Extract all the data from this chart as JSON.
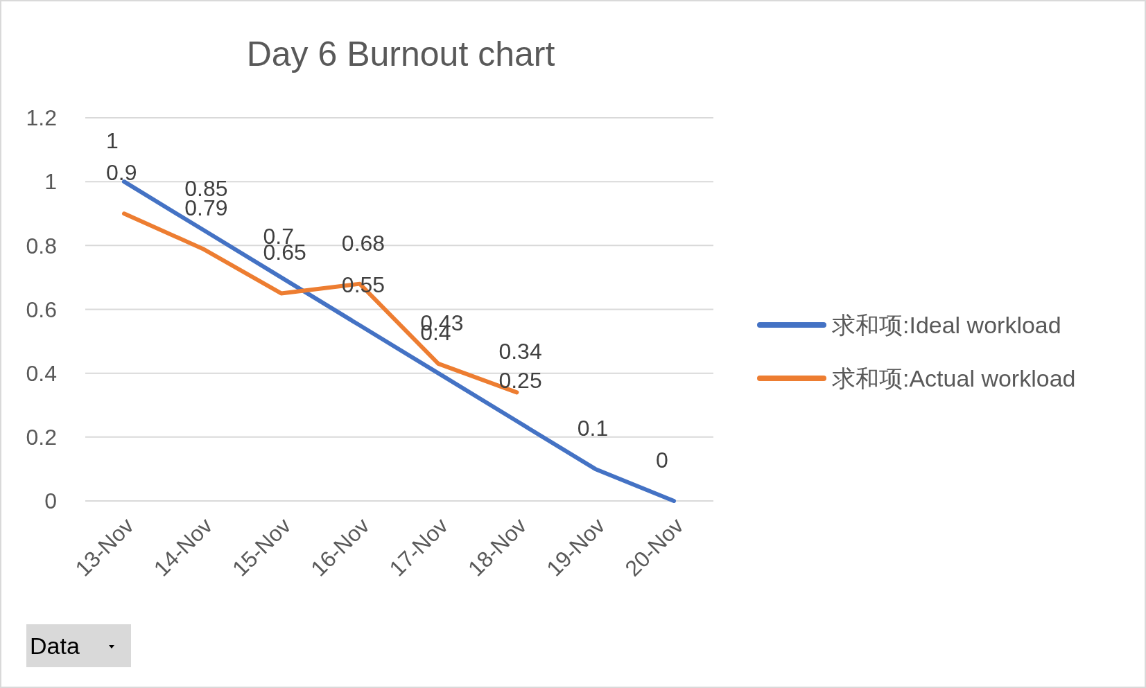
{
  "chart_data": {
    "type": "line",
    "title": "Day 6 Burnout chart",
    "categories": [
      "13-Nov",
      "14-Nov",
      "15-Nov",
      "16-Nov",
      "17-Nov",
      "18-Nov",
      "19-Nov",
      "20-Nov"
    ],
    "series": [
      {
        "name": "求和项:Ideal workload",
        "color": "#4472c4",
        "values": [
          1,
          0.85,
          0.7,
          0.55,
          0.4,
          0.25,
          0.1,
          0
        ]
      },
      {
        "name": "求和项:Actual workload",
        "color": "#ed7d31",
        "values": [
          0.9,
          0.79,
          0.65,
          0.68,
          0.43,
          0.34,
          null,
          null
        ]
      }
    ],
    "ylim": [
      0,
      1.2
    ],
    "yticks": [
      0,
      0.2,
      0.4,
      0.6,
      0.8,
      1,
      1.2
    ],
    "grid": "y",
    "legend": "right",
    "data_labels": true,
    "marker": "none",
    "line_style": "solid",
    "annotations": [
      "Data"
    ]
  }
}
